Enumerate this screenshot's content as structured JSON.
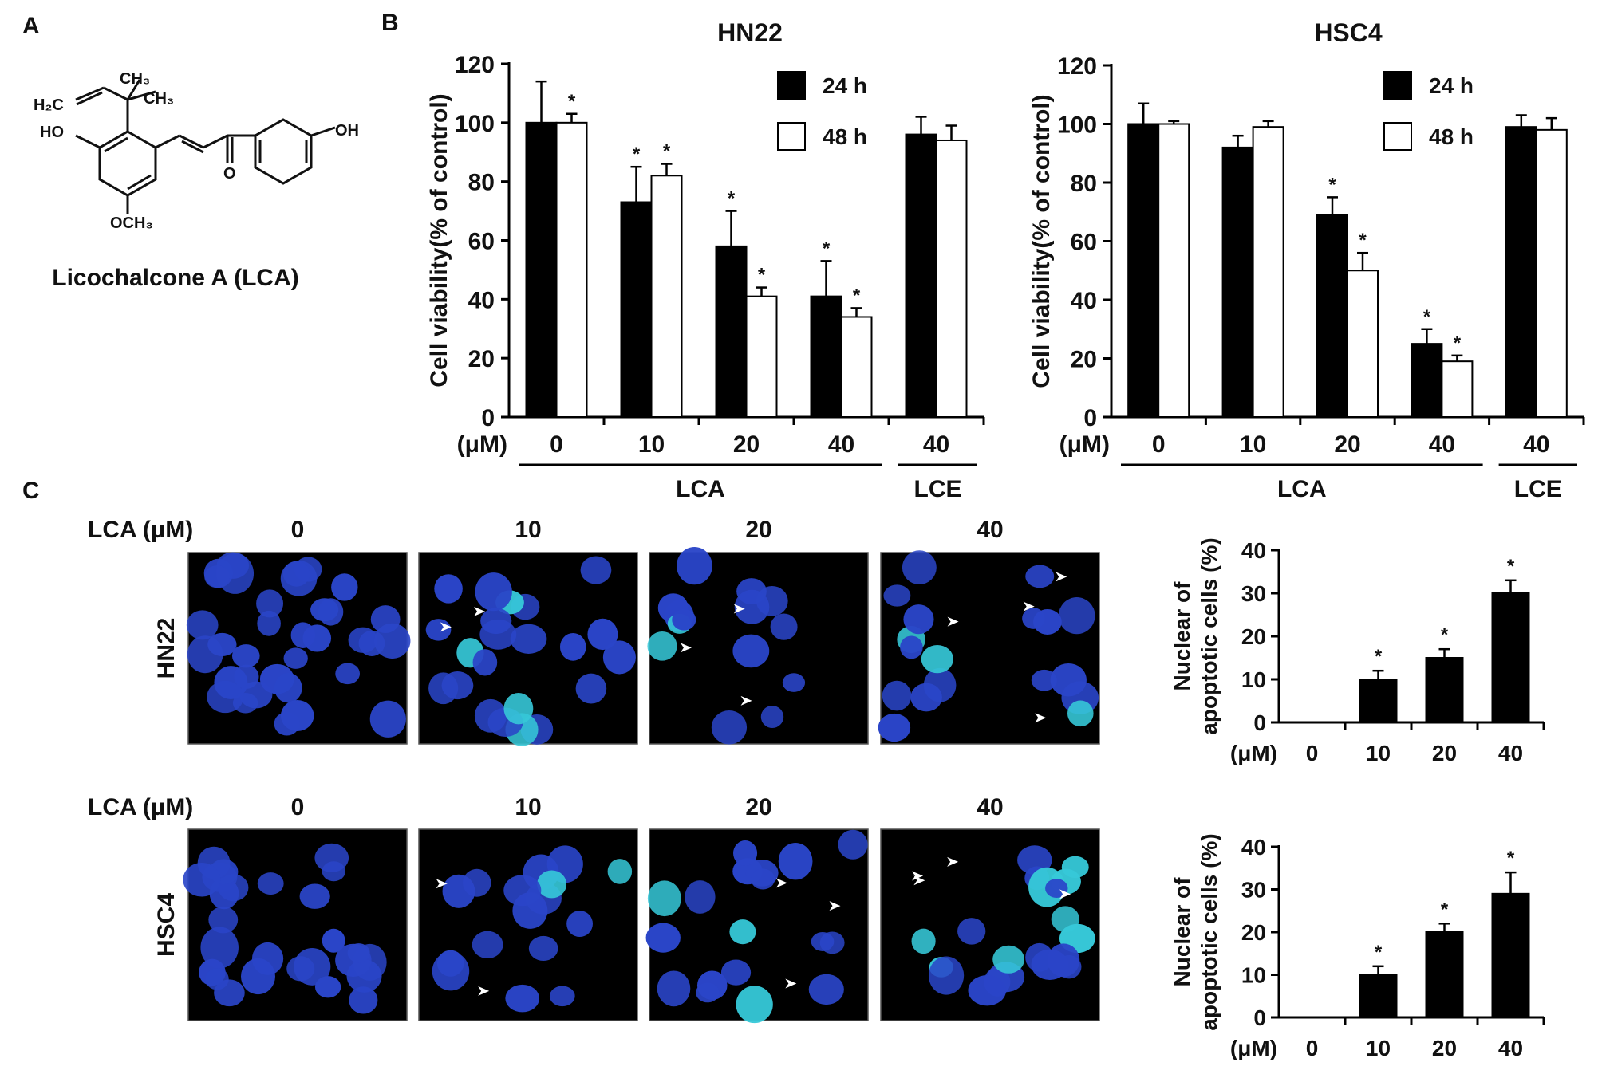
{
  "panel_labels": {
    "a": "A",
    "b": "B",
    "c": "C"
  },
  "compound": {
    "name": "Licochalcone A (LCA)",
    "atoms": {
      "ch3_top": "CH₃",
      "ch3_right": "CH₃",
      "h2c": "H₂C",
      "ho": "HO",
      "oh": "OH",
      "och3": "OCH₃",
      "o": "O"
    }
  },
  "panel_c": {
    "row_label": "LCA (μM)",
    "columns": [
      "0",
      "10",
      "20",
      "40"
    ],
    "rows": [
      "HN22",
      "HSC4"
    ]
  },
  "chart_data": [
    {
      "type": "bar",
      "title": "HN22",
      "ylabel": "Cell viability(% of control)",
      "ylim": [
        0,
        120
      ],
      "yticks": [
        "0",
        "20",
        "40",
        "60",
        "80",
        "100",
        "120"
      ],
      "x_unit": "(μM)",
      "categories": [
        "0",
        "10",
        "20",
        "40",
        "40"
      ],
      "groups": [
        {
          "label": "LCA",
          "span": [
            0,
            3
          ]
        },
        {
          "label": "LCE",
          "span": [
            4,
            4
          ]
        }
      ],
      "legend": {
        "position": "top-right",
        "entries": [
          "24 h",
          "48 h"
        ]
      },
      "series": [
        {
          "name": "24 h",
          "color": "#000000",
          "values": [
            100,
            73,
            58,
            41,
            96
          ],
          "errors": [
            14,
            12,
            12,
            12,
            6
          ],
          "sig": [
            false,
            true,
            true,
            true,
            false
          ]
        },
        {
          "name": "48 h",
          "color": "#ffffff",
          "values": [
            100,
            82,
            41,
            34,
            94
          ],
          "errors": [
            3,
            4,
            3,
            3,
            5
          ],
          "sig": [
            true,
            true,
            true,
            true,
            false
          ]
        }
      ],
      "sig_mark": "*"
    },
    {
      "type": "bar",
      "title": "HSC4",
      "ylabel": "Cell viability(% of control)",
      "ylim": [
        0,
        120
      ],
      "yticks": [
        "0",
        "20",
        "40",
        "60",
        "80",
        "100",
        "120"
      ],
      "x_unit": "(μM)",
      "categories": [
        "0",
        "10",
        "20",
        "40",
        "40"
      ],
      "groups": [
        {
          "label": "LCA",
          "span": [
            0,
            3
          ]
        },
        {
          "label": "LCE",
          "span": [
            4,
            4
          ]
        }
      ],
      "legend": {
        "position": "top-right",
        "entries": [
          "24 h",
          "48 h"
        ]
      },
      "series": [
        {
          "name": "24 h",
          "color": "#000000",
          "values": [
            100,
            92,
            69,
            25,
            99
          ],
          "errors": [
            7,
            4,
            6,
            5,
            4
          ],
          "sig": [
            false,
            false,
            true,
            true,
            false
          ]
        },
        {
          "name": "48 h",
          "color": "#ffffff",
          "values": [
            100,
            99,
            50,
            19,
            98
          ],
          "errors": [
            1,
            2,
            6,
            2,
            4
          ],
          "sig": [
            false,
            false,
            true,
            true,
            false
          ]
        }
      ],
      "sig_mark": "*"
    },
    {
      "type": "bar",
      "title": "",
      "ylabel_lines": [
        "Nuclear of",
        "apoptotic cells (%)"
      ],
      "ylim": [
        0,
        40
      ],
      "yticks": [
        "0",
        "10",
        "20",
        "30",
        "40"
      ],
      "x_unit": "(μM)",
      "categories": [
        "0",
        "10",
        "20",
        "40"
      ],
      "series": [
        {
          "values": [
            0,
            10,
            15,
            30
          ],
          "errors": [
            0,
            2,
            2,
            3
          ],
          "sig": [
            false,
            true,
            true,
            true
          ],
          "color": "#000000"
        }
      ],
      "sig_mark": "*"
    },
    {
      "type": "bar",
      "title": "",
      "ylabel_lines": [
        "Nuclear of",
        "apoptotic cells (%)"
      ],
      "ylim": [
        0,
        40
      ],
      "yticks": [
        "0",
        "10",
        "20",
        "30",
        "40"
      ],
      "x_unit": "(μM)",
      "categories": [
        "0",
        "10",
        "20",
        "40"
      ],
      "series": [
        {
          "values": [
            0,
            10,
            20,
            29
          ],
          "errors": [
            0,
            2,
            2,
            5
          ],
          "sig": [
            false,
            true,
            true,
            true
          ],
          "color": "#000000"
        }
      ],
      "sig_mark": "*"
    }
  ]
}
